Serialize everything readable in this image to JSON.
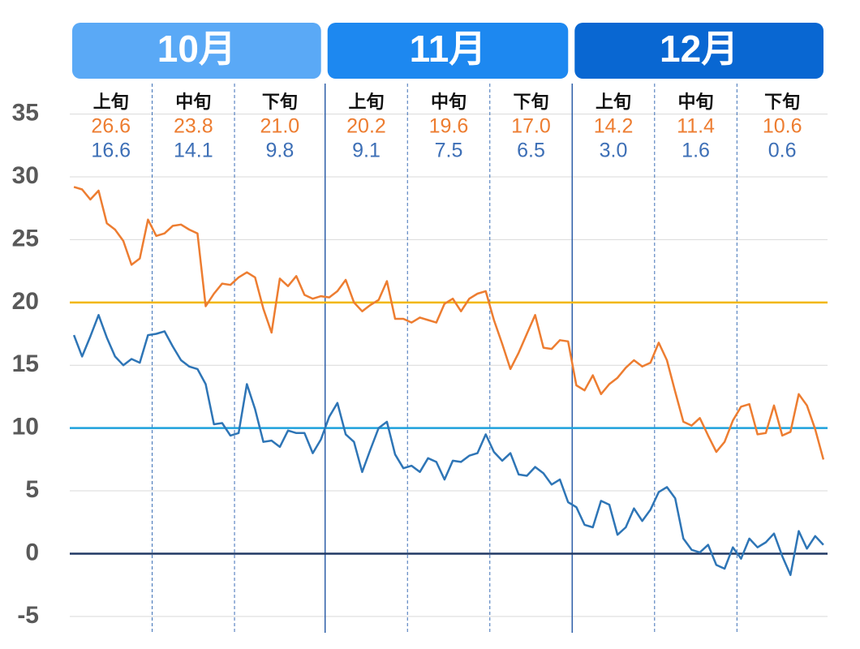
{
  "chart_data": {
    "type": "line",
    "months": [
      {
        "label": "10月",
        "color": "#5aa9f6"
      },
      {
        "label": "11月",
        "color": "#1d88f0"
      },
      {
        "label": "12月",
        "color": "#0967d2"
      }
    ],
    "decades": {
      "labels": [
        "上旬",
        "中旬",
        "下旬",
        "上旬",
        "中旬",
        "下旬",
        "上旬",
        "中旬",
        "下旬"
      ],
      "max": {
        "values": [
          26.6,
          23.8,
          21.0,
          20.2,
          19.6,
          17.0,
          14.2,
          11.4,
          10.6
        ],
        "value_labels": [
          "26.6",
          "23.8",
          "21.0",
          "20.2",
          "19.6",
          "17.0",
          "14.2",
          "11.4",
          "10.6"
        ]
      },
      "min": {
        "values": [
          16.6,
          14.1,
          9.8,
          9.1,
          7.5,
          6.5,
          3.0,
          1.6,
          0.6
        ],
        "value_labels": [
          "16.6",
          "14.1",
          "9.8",
          "9.1",
          "7.5",
          "6.5",
          "3.0",
          "1.6",
          "0.6"
        ]
      }
    },
    "series": [
      {
        "color": "#ed7d31",
        "values": [
          29.2,
          29.0,
          28.2,
          28.9,
          26.3,
          25.8,
          24.9,
          23.0,
          23.5,
          26.6,
          25.3,
          25.5,
          26.1,
          26.2,
          25.8,
          25.5,
          19.7,
          20.7,
          21.5,
          21.4,
          22.0,
          22.4,
          22.0,
          19.5,
          17.6,
          21.9,
          21.3,
          22.1,
          20.6,
          20.3,
          20.5,
          20.4,
          20.9,
          21.8,
          20.0,
          19.3,
          19.8,
          20.2,
          21.7,
          18.7,
          18.7,
          18.4,
          18.8,
          18.6,
          18.4,
          19.9,
          20.3,
          19.3,
          20.3,
          20.7,
          20.9,
          18.6,
          16.7,
          14.7,
          16.0,
          17.5,
          19.0,
          16.4,
          16.3,
          17.0,
          16.9,
          13.4,
          13.0,
          14.2,
          12.7,
          13.5,
          14.0,
          14.8,
          15.4,
          14.9,
          15.2,
          16.8,
          15.4,
          12.9,
          10.5,
          10.2,
          10.8,
          9.4,
          8.1,
          8.9,
          10.6,
          11.7,
          11.9,
          9.5,
          9.6,
          11.8,
          9.4,
          9.7,
          12.7,
          11.8,
          9.9,
          7.5
        ]
      },
      {
        "color": "#2e75b6",
        "values": [
          17.4,
          15.7,
          17.3,
          19.0,
          17.2,
          15.7,
          15.0,
          15.5,
          15.2,
          17.4,
          17.5,
          17.7,
          16.5,
          15.4,
          14.9,
          14.7,
          13.5,
          10.3,
          10.4,
          9.4,
          9.6,
          13.5,
          11.5,
          8.9,
          9.0,
          8.5,
          9.8,
          9.6,
          9.6,
          8.0,
          9.1,
          10.9,
          12.0,
          9.5,
          8.9,
          6.5,
          8.3,
          10.0,
          10.5,
          7.9,
          6.8,
          7.0,
          6.5,
          7.6,
          7.3,
          5.9,
          7.4,
          7.3,
          7.8,
          8.0,
          9.5,
          8.1,
          7.4,
          8.0,
          6.3,
          6.2,
          6.9,
          6.4,
          5.5,
          5.9,
          4.1,
          3.7,
          2.3,
          2.1,
          4.2,
          3.9,
          1.5,
          2.1,
          3.6,
          2.6,
          3.5,
          4.9,
          5.3,
          4.4,
          1.2,
          0.3,
          0.1,
          0.7,
          -0.9,
          -1.2,
          0.5,
          -0.4,
          1.2,
          0.5,
          0.9,
          1.6,
          -0.2,
          -1.7,
          1.8,
          0.4,
          1.4,
          0.7
        ]
      }
    ],
    "reference_lines": [
      {
        "value": 20,
        "color": "#f2b705"
      },
      {
        "value": 10,
        "color": "#1ea0dc"
      },
      {
        "value": 0,
        "color": "#203864"
      }
    ],
    "ylim": [
      -6.3,
      37.3
    ],
    "yticks": [
      35,
      30,
      25,
      20,
      15,
      10,
      5,
      0,
      -5
    ],
    "grid": true
  }
}
